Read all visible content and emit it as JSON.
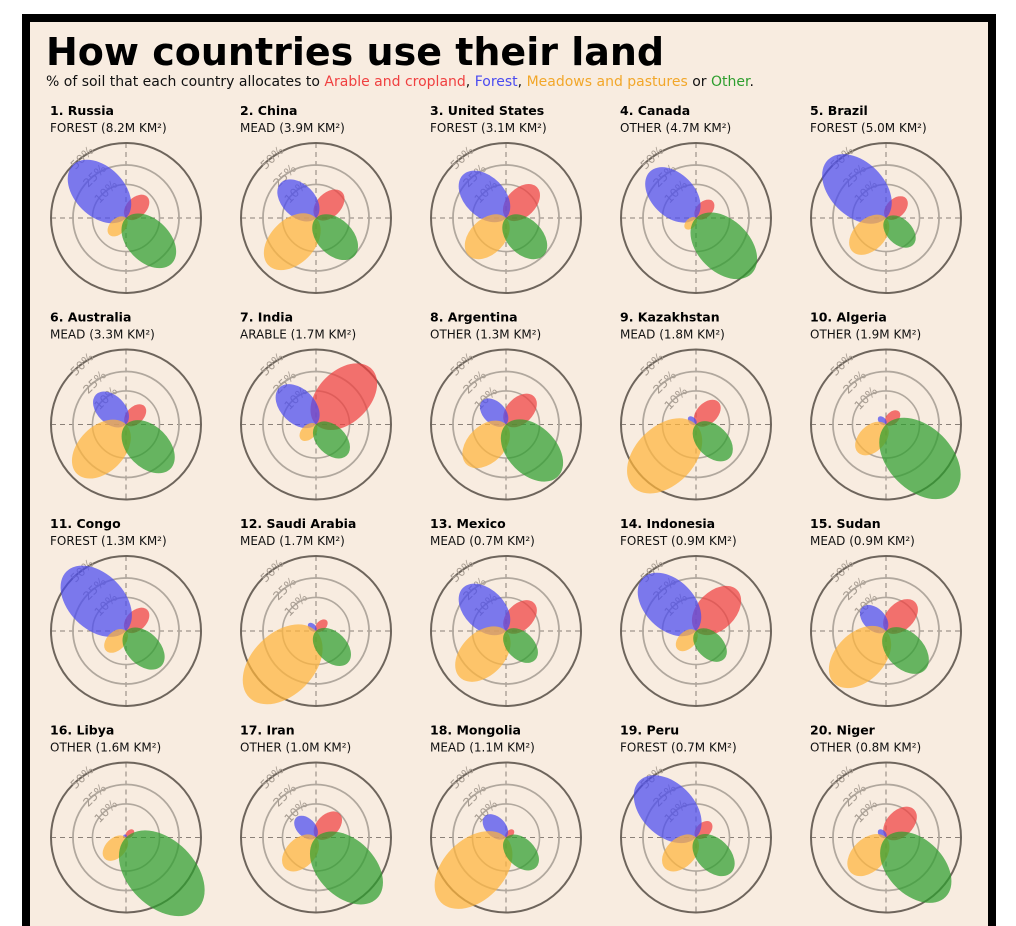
{
  "title": "How countries use their land",
  "subtitle": {
    "prefix": "% of soil that each country allocates to ",
    "arable": "Arable and cropland",
    "sep1": ", ",
    "forest": "Forest",
    "sep2": ", ",
    "meadows": "Meadows and pastures",
    "sep3": " or ",
    "other": "Other",
    "suffix": "."
  },
  "colors": {
    "arable": "#f04040",
    "forest": "#4b4bf0",
    "meadows": "#ffb43c",
    "other": "#2e9e2e",
    "background": "#f8ece0",
    "ring_outer": "#6e655c",
    "ring_inner": "#b1a89e"
  },
  "chart_data": {
    "type": "polar-petal",
    "ring_labels": [
      "10%",
      "25%",
      "50%"
    ],
    "rings": [
      10,
      25,
      50
    ],
    "legend": [
      "Arable and cropland",
      "Forest",
      "Meadows and pastures",
      "Other"
    ],
    "countries": [
      {
        "rank": "1.",
        "name": "Russia",
        "label": "FOREST (8.2M KM²)",
        "arable": 8,
        "forest": 50,
        "meadows": 5,
        "other": 37
      },
      {
        "rank": "2.",
        "name": "China",
        "label": "MEAD (3.9M KM²)",
        "arable": 12,
        "forest": 22,
        "meadows": 40,
        "other": 26
      },
      {
        "rank": "3.",
        "name": "United States",
        "label": "FOREST (3.1M KM²)",
        "arable": 17,
        "forest": 33,
        "meadows": 25,
        "other": 25
      },
      {
        "rank": "4.",
        "name": "Canada",
        "label": "OTHER (4.7M KM²)",
        "arable": 5,
        "forest": 38,
        "meadows": 2,
        "other": 55
      },
      {
        "rank": "5.",
        "name": "Brazil",
        "label": "FOREST (5.0M KM²)",
        "arable": 7,
        "forest": 60,
        "meadows": 20,
        "other": 13
      },
      {
        "rank": "6.",
        "name": "Australia",
        "label": "MEAD (3.3M KM²)",
        "arable": 6,
        "forest": 16,
        "meadows": 43,
        "other": 35
      },
      {
        "rank": "7.",
        "name": "India",
        "label": "ARABLE (1.7M KM²)",
        "arable": 55,
        "forest": 24,
        "meadows": 4,
        "other": 17
      },
      {
        "rank": "8.",
        "name": "Argentina",
        "label": "OTHER (1.3M KM²)",
        "arable": 14,
        "forest": 10,
        "meadows": 28,
        "other": 48
      },
      {
        "rank": "9.",
        "name": "Kazakhstan",
        "label": "MEAD (1.8M KM²)",
        "arable": 9,
        "forest": 1,
        "meadows": 70,
        "other": 20
      },
      {
        "rank": "10.",
        "name": "Algeria",
        "label": "OTHER (1.9M KM²)",
        "arable": 3,
        "forest": 1,
        "meadows": 14,
        "other": 82
      },
      {
        "rank": "11.",
        "name": "Congo",
        "label": "FOREST (1.3M KM²)",
        "arable": 8,
        "forest": 63,
        "meadows": 7,
        "other": 22
      },
      {
        "rank": "12.",
        "name": "Saudi Arabia",
        "label": "MEAD (1.7M KM²)",
        "arable": 2,
        "forest": 1,
        "meadows": 79,
        "other": 18
      },
      {
        "rank": "13.",
        "name": "Mexico",
        "label": "MEAD (0.7M KM²)",
        "arable": 14,
        "forest": 33,
        "meadows": 38,
        "other": 15
      },
      {
        "rank": "14.",
        "name": "Indonesia",
        "label": "FOREST (0.9M KM²)",
        "arable": 30,
        "forest": 50,
        "meadows": 6,
        "other": 14
      },
      {
        "rank": "15.",
        "name": "Sudan",
        "label": "MEAD (0.9M KM²)",
        "arable": 15,
        "forest": 10,
        "meadows": 48,
        "other": 27
      },
      {
        "rank": "16.",
        "name": "Libya",
        "label": "OTHER (1.6M KM²)",
        "arable": 1,
        "forest": 0.1,
        "meadows": 8,
        "other": 91
      },
      {
        "rank": "17.",
        "name": "Iran",
        "label": "OTHER (1.0M KM²)",
        "arable": 10,
        "forest": 7,
        "meadows": 17,
        "other": 66
      },
      {
        "rank": "18.",
        "name": "Mongolia",
        "label": "MEAD (1.1M KM²)",
        "arable": 1,
        "forest": 8,
        "meadows": 75,
        "other": 16
      },
      {
        "rank": "19.",
        "name": "Peru",
        "label": "FOREST (0.7M KM²)",
        "arable": 4,
        "forest": 57,
        "meadows": 17,
        "other": 22
      },
      {
        "rank": "20.",
        "name": "Niger",
        "label": "OTHER (0.8M KM²)",
        "arable": 14,
        "forest": 1,
        "meadows": 22,
        "other": 63
      }
    ]
  }
}
